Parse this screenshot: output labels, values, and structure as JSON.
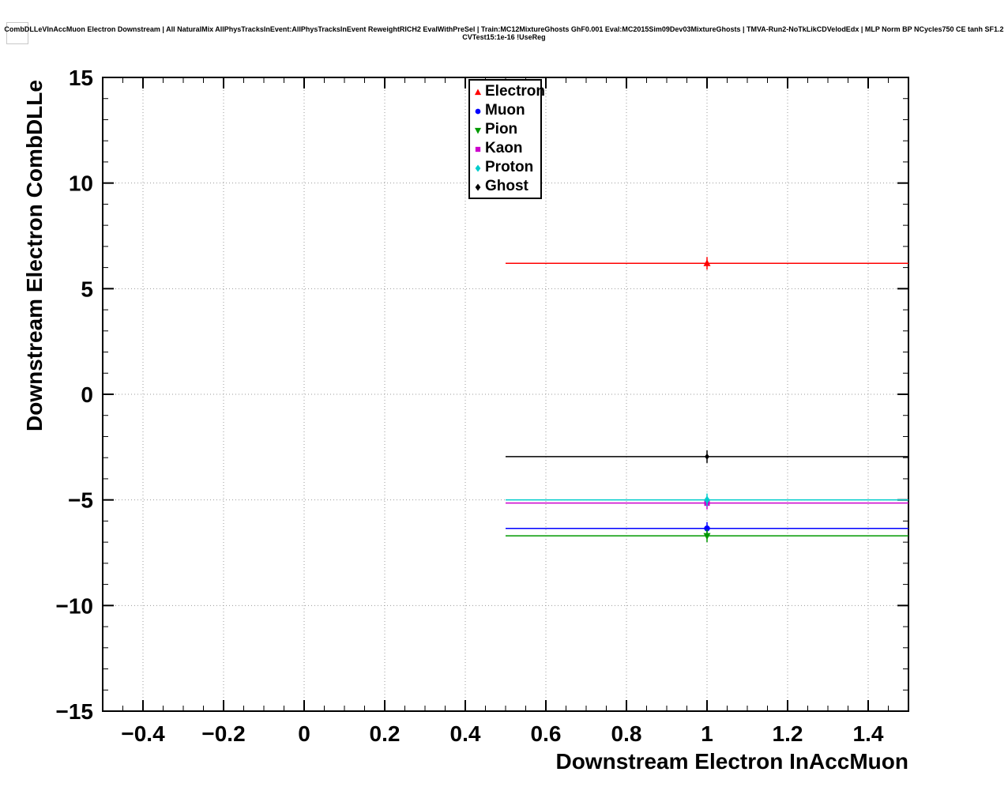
{
  "title": "CombDLLeVInAccMuon Electron Downstream | All NaturalMix AllPhysTracksInEvent:AllPhysTracksInEvent ReweightRICH2 EvalWithPreSel | Train:MC12MixtureGhosts GhF0.001 Eval:MC2015Sim09Dev03MixtureGhosts | TMVA-Run2-NoTkLikCDVelodEdx | MLP Norm BP NCycles750 CE tanh SF1.2 CVTest15:1e-16 !UseReg",
  "chart_data": {
    "type": "line",
    "title": "CombDLLeVInAccMuon Electron Downstream | All NaturalMix AllPhysTracksInEvent:AllPhysTracksInEvent ReweightRICH2 EvalWithPreSel | Train:MC12MixtureGhosts GhF0.001 Eval:MC2015Sim09Dev03MixtureGhosts | TMVA-Run2-NoTkLikCDVelodEdx | MLP Norm BP NCycles750 CE tanh SF1.2 CVTest15:1e-16 !UseReg",
    "xlabel": "Downstream Electron InAccMuon",
    "ylabel": "Downstream Electron CombDLLe",
    "xlim": [
      -0.5,
      1.5
    ],
    "ylim": [
      -15,
      15
    ],
    "xticks": [
      -0.4,
      -0.2,
      0,
      0.2,
      0.4,
      0.6,
      0.8,
      1,
      1.2,
      1.4
    ],
    "xtick_labels": [
      "−0.4",
      "−0.2",
      "0",
      "0.2",
      "0.4",
      "0.6",
      "0.8",
      "1",
      "1.2",
      "1.4"
    ],
    "yticks": [
      -15,
      -10,
      -5,
      0,
      5,
      10,
      15
    ],
    "ytick_labels": [
      "−15",
      "−10",
      "−5",
      "0",
      "5",
      "10",
      "15"
    ],
    "grid": true,
    "legend_position": "top-center",
    "series": [
      {
        "name": "Electron",
        "color": "#ff0000",
        "marker": "triangle-up",
        "marker_size": 5,
        "x": 1,
        "y": 6.2,
        "yerr": 0.3,
        "xlow": 0.5,
        "xhigh": 1.5
      },
      {
        "name": "Muon",
        "color": "#0000ff",
        "marker": "circle",
        "marker_size": 5,
        "x": 1,
        "y": -6.35,
        "yerr": 0.3,
        "xlow": 0.5,
        "xhigh": 1.5
      },
      {
        "name": "Pion",
        "color": "#009900",
        "marker": "triangle-down",
        "marker_size": 5,
        "x": 1,
        "y": -6.7,
        "yerr": 0.3,
        "xlow": 0.5,
        "xhigh": 1.5
      },
      {
        "name": "Kaon",
        "color": "#cc00cc",
        "marker": "square",
        "marker_size": 5,
        "x": 1,
        "y": -5.15,
        "yerr": 0.3,
        "xlow": 0.5,
        "xhigh": 1.5
      },
      {
        "name": "Proton",
        "color": "#00cccc",
        "marker": "diamond",
        "marker_size": 5,
        "x": 1,
        "y": -5.0,
        "yerr": 0.3,
        "xlow": 0.5,
        "xhigh": 1.5
      },
      {
        "name": "Ghost",
        "color": "#000000",
        "marker": "diamond",
        "marker_size": 4,
        "x": 1,
        "y": -2.95,
        "yerr": 0.3,
        "xlow": 0.5,
        "xhigh": 1.5
      }
    ]
  }
}
